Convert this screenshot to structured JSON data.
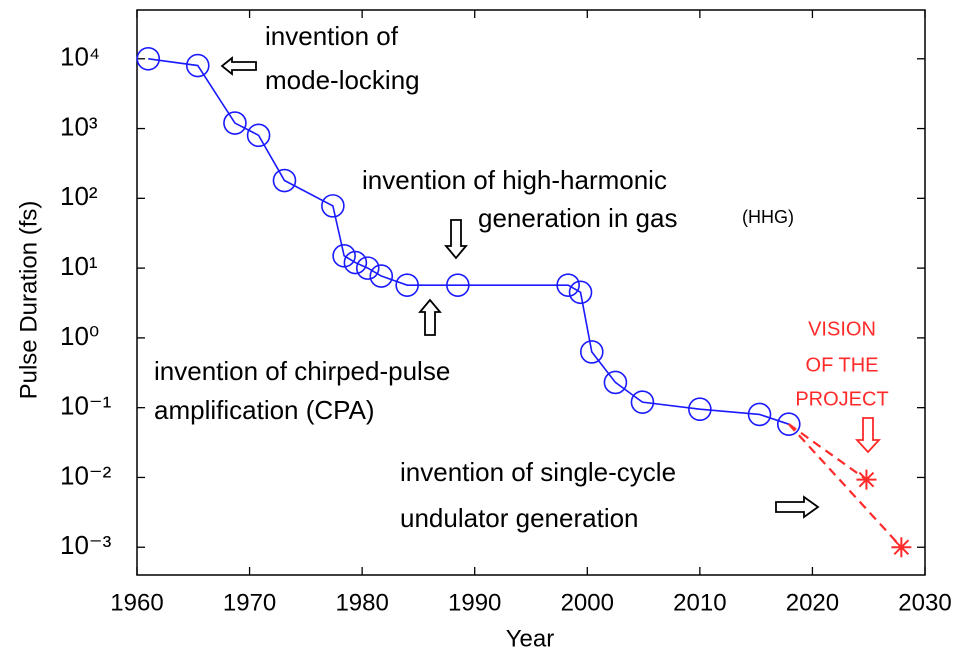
{
  "chart_data": {
    "type": "line",
    "x_label": "Year",
    "y_label": "Pulse Duration (fs)",
    "log_y": true,
    "grid": false,
    "xlim": [
      1960,
      2030
    ],
    "xticks": [
      1960,
      1970,
      1980,
      1990,
      2000,
      2010,
      2020,
      2030
    ],
    "ylim": [
      0.0004,
      50000
    ],
    "yticks": [
      {
        "value": 10000,
        "label": "10⁴"
      },
      {
        "value": 1000,
        "label": "10³"
      },
      {
        "value": 100,
        "label": "10²"
      },
      {
        "value": 10,
        "label": "10¹"
      },
      {
        "value": 1,
        "label": "10⁰"
      },
      {
        "value": 0.1,
        "label": "10⁻¹"
      },
      {
        "value": 0.01,
        "label": "10⁻²"
      },
      {
        "value": 0.001,
        "label": "10⁻³"
      }
    ],
    "series": [
      {
        "color": "#1a1aff",
        "marker": "circle",
        "x": [
          1961,
          1965.4,
          1968.7,
          1970.8,
          1973.1,
          1977.4,
          1978.4,
          1979.4,
          1980.5,
          1981.7,
          1984,
          1988.5,
          1998.3,
          1999.4,
          2000.4,
          2002.5,
          2004.9,
          2010,
          2015.3,
          2017.9
        ],
        "values": [
          10000,
          8000,
          1200,
          800,
          180,
          78,
          15,
          12,
          10,
          7.7,
          5.7,
          5.7,
          5.7,
          4.5,
          0.63,
          0.23,
          0.12,
          0.095,
          0.08,
          0.058
        ]
      },
      {
        "color": "#ff2a2a",
        "marker": "star",
        "dashed": true,
        "x": [
          2024.8,
          2027.9
        ],
        "values": [
          0.0093,
          0.001
        ]
      }
    ],
    "annotations": [
      {
        "text": "invention of",
        "color": "#000000"
      },
      {
        "text": "mode-locking",
        "color": "#000000"
      },
      {
        "text": "invention of  high-harmonic",
        "color": "#000000"
      },
      {
        "text": "generation in gas",
        "color": "#000000"
      },
      {
        "text": "(HHG)",
        "color": "#000000"
      },
      {
        "text": "invention of chirped-pulse",
        "color": "#000000"
      },
      {
        "text": "amplification (CPA)",
        "color": "#000000"
      },
      {
        "text": "VISION",
        "color": "#ff2a2a"
      },
      {
        "text": "OF THE",
        "color": "#ff2a2a"
      },
      {
        "text": "PROJECT",
        "color": "#ff2a2a"
      },
      {
        "text": "invention of single-cycle",
        "color": "#000000"
      },
      {
        "text": "undulator generation",
        "color": "#000000"
      }
    ]
  }
}
